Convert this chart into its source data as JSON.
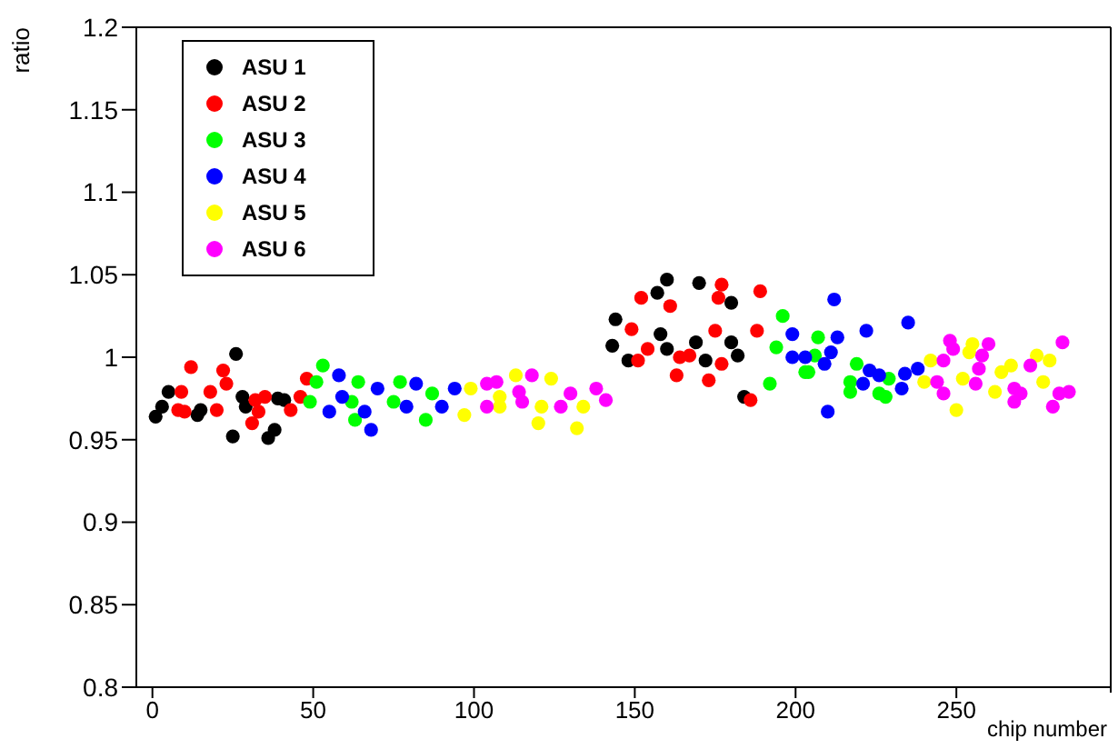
{
  "chart_data": {
    "type": "scatter",
    "xlabel": "chip number",
    "ylabel": "ratio",
    "xlim": [
      -5,
      298
    ],
    "xticks": [
      0,
      50,
      100,
      150,
      200,
      250
    ],
    "ylim": [
      0.8,
      1.2
    ],
    "yticks": [
      0.8,
      0.85,
      0.9,
      0.95,
      1,
      1.05,
      1.1,
      1.15,
      1.2
    ],
    "grid": false,
    "legend": "top left",
    "marker": "circle",
    "series": [
      {
        "name": "ASU 1",
        "color": "#000000",
        "x": [
          1,
          3,
          5,
          14,
          15,
          25,
          26,
          28,
          29,
          36,
          38,
          39,
          41,
          143,
          144,
          148,
          157,
          158,
          160,
          160,
          169,
          170,
          172,
          180,
          180,
          182,
          184
        ],
        "values": [
          0.964,
          0.97,
          0.979,
          0.965,
          0.968,
          0.952,
          1.002,
          0.976,
          0.97,
          0.951,
          0.956,
          0.975,
          0.974,
          1.007,
          1.023,
          0.998,
          1.039,
          1.014,
          1.047,
          1.005,
          1.009,
          1.045,
          0.998,
          1.033,
          1.009,
          1.001,
          0.976
        ]
      },
      {
        "name": "ASU 2",
        "color": "#ff0000",
        "x": [
          8,
          9,
          10,
          12,
          18,
          20,
          22,
          23,
          31,
          32,
          33,
          35,
          43,
          46,
          48,
          149,
          151,
          152,
          154,
          161,
          163,
          164,
          167,
          173,
          175,
          176,
          177,
          177,
          186,
          188,
          189
        ],
        "values": [
          0.968,
          0.979,
          0.967,
          0.994,
          0.979,
          0.968,
          0.992,
          0.984,
          0.96,
          0.974,
          0.967,
          0.976,
          0.968,
          0.976,
          0.987,
          1.017,
          0.998,
          1.036,
          1.005,
          1.031,
          0.989,
          1.0,
          1.001,
          0.986,
          1.016,
          1.036,
          1.044,
          0.996,
          0.974,
          1.016,
          1.04
        ]
      },
      {
        "name": "ASU 3",
        "color": "#00ff00",
        "x": [
          49,
          51,
          53,
          62,
          63,
          64,
          75,
          77,
          85,
          87,
          192,
          194,
          196,
          203,
          204,
          206,
          207,
          217,
          217,
          219,
          226,
          228,
          229
        ],
        "values": [
          0.973,
          0.985,
          0.995,
          0.973,
          0.962,
          0.985,
          0.973,
          0.985,
          0.962,
          0.978,
          0.984,
          1.006,
          1.025,
          0.991,
          0.991,
          1.001,
          1.012,
          0.985,
          0.979,
          0.996,
          0.978,
          0.976,
          0.987
        ]
      },
      {
        "name": "ASU 4",
        "color": "#0000ff",
        "x": [
          55,
          58,
          59,
          66,
          68,
          70,
          79,
          82,
          90,
          94,
          199,
          199,
          203,
          209,
          210,
          211,
          212,
          213,
          221,
          222,
          223,
          226,
          233,
          234,
          235,
          238
        ],
        "values": [
          0.967,
          0.989,
          0.976,
          0.967,
          0.956,
          0.981,
          0.97,
          0.984,
          0.97,
          0.981,
          1.014,
          1.0,
          1.0,
          0.996,
          0.967,
          1.003,
          1.035,
          1.012,
          0.984,
          1.016,
          0.992,
          0.989,
          0.981,
          0.99,
          1.021,
          0.993
        ]
      },
      {
        "name": "ASU 5",
        "color": "#ffff00",
        "x": [
          97,
          99,
          108,
          108,
          113,
          120,
          121,
          124,
          132,
          134,
          240,
          242,
          250,
          252,
          254,
          255,
          262,
          264,
          267,
          275,
          277,
          279
        ],
        "values": [
          0.965,
          0.981,
          0.976,
          0.97,
          0.989,
          0.96,
          0.97,
          0.987,
          0.957,
          0.97,
          0.985,
          0.998,
          0.968,
          0.987,
          1.003,
          1.008,
          0.979,
          0.991,
          0.995,
          1.001,
          0.985,
          0.998
        ]
      },
      {
        "name": "ASU 6",
        "color": "#ff00ff",
        "x": [
          104,
          104,
          107,
          114,
          115,
          118,
          127,
          130,
          138,
          141,
          244,
          246,
          246,
          248,
          249,
          256,
          257,
          258,
          260,
          268,
          268,
          270,
          273,
          280,
          282,
          283,
          285
        ],
        "values": [
          0.984,
          0.97,
          0.985,
          0.979,
          0.973,
          0.989,
          0.97,
          0.978,
          0.981,
          0.974,
          0.985,
          0.998,
          0.978,
          1.01,
          1.005,
          0.984,
          0.993,
          1.001,
          1.008,
          0.981,
          0.973,
          0.978,
          0.995,
          0.97,
          0.978,
          1.009,
          0.979
        ]
      }
    ]
  }
}
